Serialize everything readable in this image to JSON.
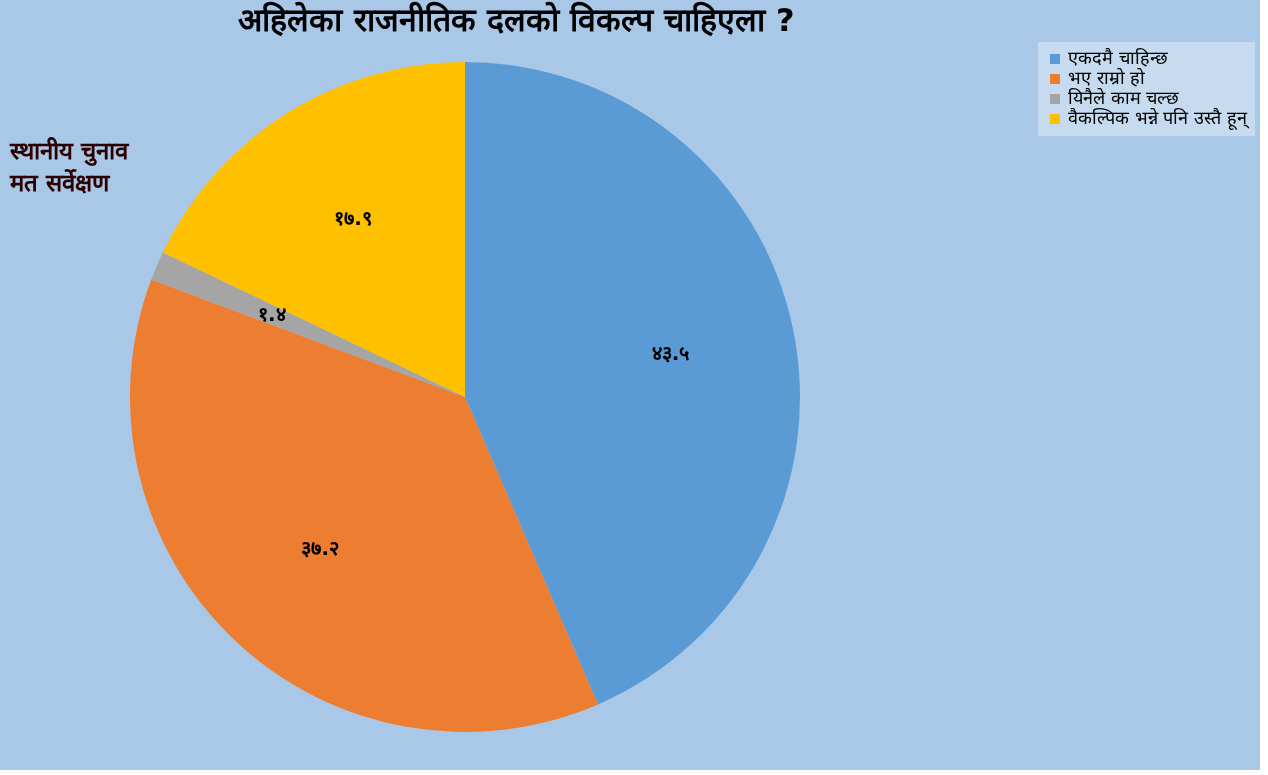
{
  "chart_data": {
    "type": "pie",
    "title": "अहिलेका राजनीतिक दलको विकल्प चाहिएला ?",
    "categories": [
      "एकदमै चाहिन्छ",
      "भए राम्रो हो",
      "यिनैले काम चल्छ",
      "वैकल्पिक भन्ने पनि उस्तै हून्"
    ],
    "values": [
      43.5,
      37.2,
      1.4,
      17.9
    ],
    "colors": [
      "#5b9bd5",
      "#ed7d31",
      "#a5a5a5",
      "#ffc000"
    ],
    "value_labels": [
      "४३.५",
      "३७.२",
      "१.४",
      "१७.९"
    ],
    "legend": "right",
    "annotations": [
      "स्थानीय चुनाव\nमत सर्वेक्षण"
    ]
  }
}
